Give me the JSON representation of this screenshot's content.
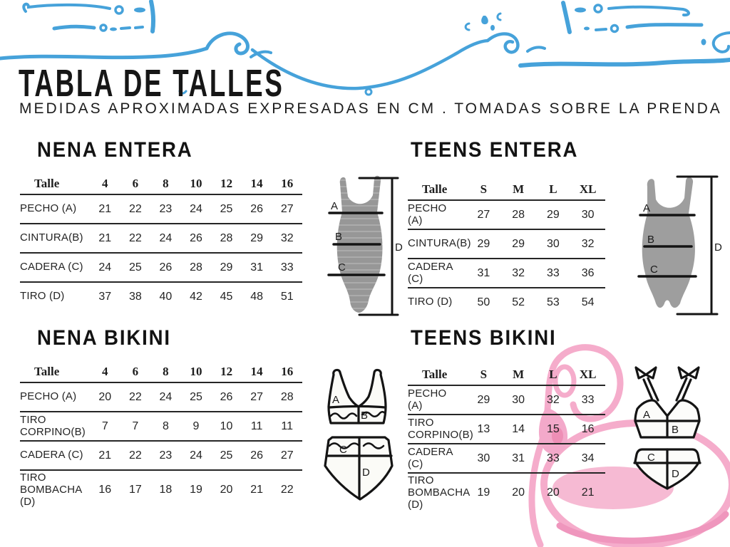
{
  "header": {
    "title": "TABLA DE TALLES",
    "subtitle": "MEDIDAS APROXIMADAS EXPRESADAS EN CM . TOMADAS SOBRE LA PRENDA"
  },
  "sections": {
    "nena_entera_title": "NENA ENTERA",
    "teens_entera_title": "TEENS ENTERA",
    "nena_bikini_title": "NENA BIKINI",
    "teens_bikini_title": "TEENS BIKINI"
  },
  "tables": {
    "nena_entera": {
      "col_header": "Talle",
      "sizes": [
        "4",
        "6",
        "8",
        "10",
        "12",
        "14",
        "16"
      ],
      "rows": [
        {
          "label": "PECHO (A)",
          "values": [
            "21",
            "22",
            "23",
            "24",
            "25",
            "26",
            "27"
          ]
        },
        {
          "label": "CINTURA(B)",
          "values": [
            "21",
            "22",
            "24",
            "26",
            "28",
            "29",
            "32"
          ]
        },
        {
          "label": "CADERA (C)",
          "values": [
            "24",
            "25",
            "26",
            "28",
            "29",
            "31",
            "33"
          ]
        },
        {
          "label": "TIRO (D)",
          "values": [
            "37",
            "38",
            "40",
            "42",
            "45",
            "48",
            "51"
          ]
        }
      ]
    },
    "teens_entera": {
      "col_header": "Talle",
      "sizes": [
        "S",
        "M",
        "L",
        "XL"
      ],
      "rows": [
        {
          "label": "PECHO (A)",
          "values": [
            "27",
            "28",
            "29",
            "30"
          ]
        },
        {
          "label": "CINTURA(B)",
          "values": [
            "29",
            "29",
            "30",
            "32"
          ]
        },
        {
          "label": "CADERA (C)",
          "values": [
            "31",
            "32",
            "33",
            "36"
          ]
        },
        {
          "label": "TIRO (D)",
          "values": [
            "50",
            "52",
            "53",
            "54"
          ]
        }
      ]
    },
    "nena_bikini": {
      "col_header": "Talle",
      "sizes": [
        "4",
        "6",
        "8",
        "10",
        "12",
        "14",
        "16"
      ],
      "rows": [
        {
          "label": "PECHO (A)",
          "values": [
            "20",
            "22",
            "24",
            "25",
            "26",
            "27",
            "28"
          ]
        },
        {
          "label": "TIRO CORPINO(B)",
          "values": [
            "7",
            "7",
            "8",
            "9",
            "10",
            "11",
            "11"
          ]
        },
        {
          "label": "CADERA (C)",
          "values": [
            "21",
            "22",
            "23",
            "24",
            "25",
            "26",
            "27"
          ]
        },
        {
          "label": "TIRO BOMBACHA (D)",
          "values": [
            "16",
            "17",
            "18",
            "19",
            "20",
            "21",
            "22"
          ]
        }
      ]
    },
    "teens_bikini": {
      "col_header": "Talle",
      "sizes": [
        "S",
        "M",
        "L",
        "XL"
      ],
      "rows": [
        {
          "label": "PECHO (A)",
          "values": [
            "29",
            "30",
            "32",
            "33"
          ]
        },
        {
          "label": "TIRO CORPINO(B)",
          "values": [
            "13",
            "14",
            "15",
            "16"
          ]
        },
        {
          "label": "CADERA (C)",
          "values": [
            "30",
            "31",
            "33",
            "34"
          ]
        },
        {
          "label": "TIRO BOMBACHA (D)",
          "values": [
            "19",
            "20",
            "20",
            "21"
          ]
        }
      ]
    }
  },
  "diagram": {
    "a": "A",
    "b": "B",
    "c": "C",
    "d": "D"
  },
  "colors": {
    "wave_blue": "#46A2DA",
    "flamingo_pink": "#F5ACCB",
    "flamingo_pink_deep": "#EE8FB6",
    "suit_gray": "#979797",
    "suit_stripe": "#ABABAB",
    "line_black": "#1E1E1E",
    "text_black": "#1D1D1D"
  }
}
